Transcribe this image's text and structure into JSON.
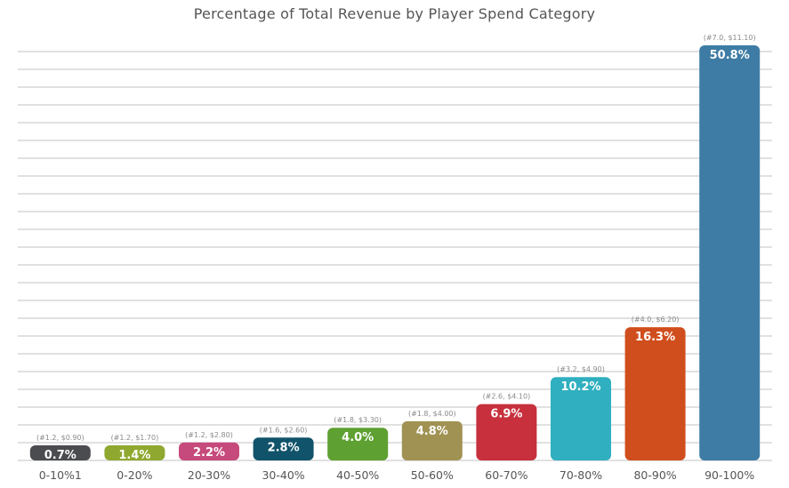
{
  "chart_data": {
    "type": "bar",
    "title": "Percentage of Total Revenue by Player Spend Category",
    "xlabel": "",
    "ylabel": "",
    "ylim": [
      0,
      52
    ],
    "grid": true,
    "categories": [
      "0-10%1",
      "0-20%",
      "20-30%",
      "30-40%",
      "40-50%",
      "50-60%",
      "60-70%",
      "70-80%",
      "80-90%",
      "90-100%"
    ],
    "values": [
      0.7,
      1.4,
      2.2,
      2.8,
      4.0,
      4.8,
      6.9,
      10.2,
      16.3,
      50.8
    ],
    "value_labels": [
      "0.7%",
      "1.4%",
      "2.2%",
      "2.8%",
      "4.0%",
      "4.8%",
      "6.9%",
      "10.2%",
      "16.3%",
      "50.8%"
    ],
    "annotations": [
      "(#1.2, $0.90)",
      "(#1.2, $1.70)",
      "(#1.2, $2.80)",
      "(#1.6, $2.60)",
      "(#1.8, $3.30)",
      "(#1.8, $4.00)",
      "(#2.6, $4.10)",
      "(#3.2, $4.90)",
      "(#4.0, $6.20)",
      "(#7.0, $11.10)"
    ],
    "colors": [
      "#4a4c4f",
      "#8fa830",
      "#c64a7b",
      "#11536a",
      "#5ea031",
      "#a09253",
      "#c7303c",
      "#2fafc0",
      "#d04e1d",
      "#3e7ca5"
    ]
  }
}
